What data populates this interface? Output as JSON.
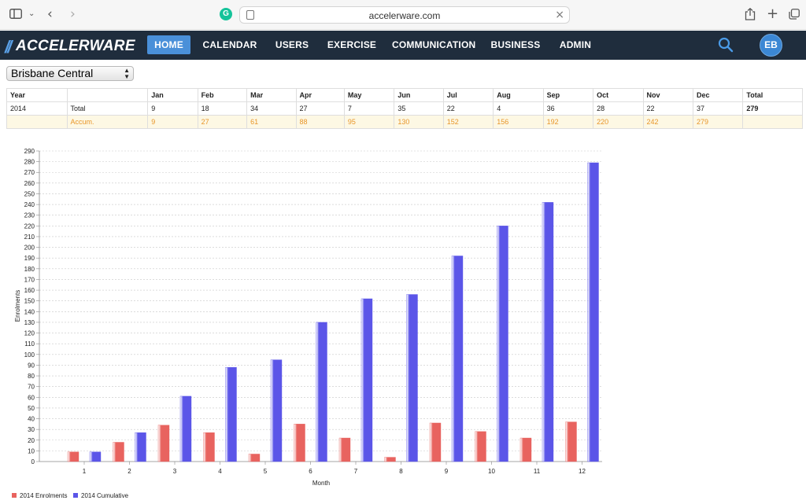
{
  "browser": {
    "url": "accelerware.com"
  },
  "nav": {
    "logo_text": "ACCELERWARE",
    "items": [
      {
        "label": "HOME",
        "active": true
      },
      {
        "label": "CALENDAR",
        "active": false
      },
      {
        "label": "USERS",
        "active": false
      },
      {
        "label": "EXERCISE",
        "active": false
      },
      {
        "label": "COMMUNICATION",
        "active": false
      },
      {
        "label": "BUSINESS",
        "active": false
      },
      {
        "label": "ADMIN",
        "active": false
      }
    ],
    "avatar_initials": "EB"
  },
  "location": {
    "selected": "Brisbane Central"
  },
  "table": {
    "header": [
      "Year",
      "",
      "Jan",
      "Feb",
      "Mar",
      "Apr",
      "May",
      "Jun",
      "Jul",
      "Aug",
      "Sep",
      "Oct",
      "Nov",
      "Dec",
      "Total"
    ],
    "total_row": [
      "2014",
      "Total",
      "9",
      "18",
      "34",
      "27",
      "7",
      "35",
      "22",
      "4",
      "36",
      "28",
      "22",
      "37",
      "279"
    ],
    "accum_row": [
      "",
      "Accum.",
      "9",
      "27",
      "61",
      "88",
      "95",
      "130",
      "152",
      "156",
      "192",
      "220",
      "242",
      "279",
      ""
    ]
  },
  "chart_data": {
    "type": "bar",
    "categories": [
      "1",
      "2",
      "3",
      "4",
      "5",
      "6",
      "7",
      "8",
      "9",
      "10",
      "11",
      "12"
    ],
    "series": [
      {
        "name": "2014 Enrolments",
        "color": "#e8635f",
        "values": [
          9,
          18,
          34,
          27,
          7,
          35,
          22,
          4,
          36,
          28,
          22,
          37
        ]
      },
      {
        "name": "2014 Cumulative",
        "color": "#5b55e8",
        "values": [
          9,
          27,
          61,
          88,
          95,
          130,
          152,
          156,
          192,
          220,
          242,
          279
        ]
      }
    ],
    "xlabel": "Month",
    "ylabel": "Enrolments",
    "ylim": [
      0,
      290
    ],
    "ytick_step": 10,
    "grid": true,
    "legend_position": "bottom-left"
  }
}
